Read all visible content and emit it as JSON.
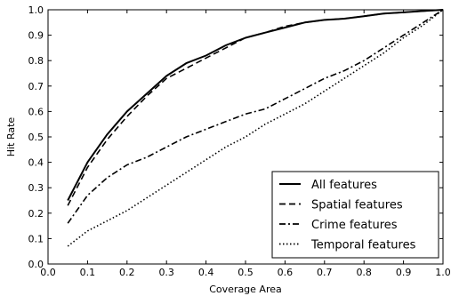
{
  "chart_data": {
    "type": "line",
    "xlabel": "Coverage Area",
    "ylabel": "Hit Rate",
    "xlim": [
      0.0,
      1.0
    ],
    "ylim": [
      0.0,
      1.0
    ],
    "xticks": [
      "0.0",
      "0.1",
      "0.2",
      "0.3",
      "0.4",
      "0.5",
      "0.6",
      "0.7",
      "0.8",
      "0.9",
      "1.0"
    ],
    "yticks": [
      "0.0",
      "0.1",
      "0.2",
      "0.3",
      "0.4",
      "0.5",
      "0.6",
      "0.7",
      "0.8",
      "0.9",
      "1.0"
    ],
    "grid": false,
    "legend_position": "bottom-right",
    "series": [
      {
        "name": "All features",
        "style": "solid",
        "color": "#000000",
        "x": [
          0.05,
          0.1,
          0.15,
          0.2,
          0.25,
          0.3,
          0.35,
          0.4,
          0.45,
          0.5,
          0.55,
          0.6,
          0.65,
          0.7,
          0.75,
          0.8,
          0.85,
          0.9,
          0.95,
          1.0
        ],
        "y": [
          0.25,
          0.4,
          0.51,
          0.6,
          0.67,
          0.74,
          0.79,
          0.82,
          0.86,
          0.89,
          0.91,
          0.93,
          0.95,
          0.96,
          0.965,
          0.975,
          0.985,
          0.99,
          0.995,
          1.0
        ]
      },
      {
        "name": "Spatial features",
        "style": "dashed",
        "color": "#000000",
        "x": [
          0.05,
          0.1,
          0.15,
          0.2,
          0.25,
          0.3,
          0.35,
          0.4,
          0.45,
          0.5,
          0.55,
          0.6,
          0.65,
          0.7,
          0.75,
          0.8,
          0.85,
          0.9,
          0.95,
          1.0
        ],
        "y": [
          0.23,
          0.38,
          0.49,
          0.58,
          0.66,
          0.73,
          0.77,
          0.81,
          0.85,
          0.89,
          0.91,
          0.935,
          0.95,
          0.96,
          0.965,
          0.975,
          0.985,
          0.99,
          0.995,
          1.0
        ]
      },
      {
        "name": "Crime features",
        "style": "dashdot",
        "color": "#000000",
        "x": [
          0.05,
          0.1,
          0.15,
          0.2,
          0.25,
          0.3,
          0.35,
          0.4,
          0.45,
          0.5,
          0.55,
          0.6,
          0.65,
          0.7,
          0.75,
          0.8,
          0.85,
          0.9,
          0.95,
          1.0
        ],
        "y": [
          0.16,
          0.27,
          0.34,
          0.39,
          0.42,
          0.46,
          0.5,
          0.53,
          0.56,
          0.59,
          0.61,
          0.65,
          0.69,
          0.73,
          0.76,
          0.8,
          0.85,
          0.9,
          0.95,
          1.0
        ]
      },
      {
        "name": "Temporal features",
        "style": "dotted",
        "color": "#000000",
        "x": [
          0.05,
          0.1,
          0.15,
          0.2,
          0.25,
          0.3,
          0.35,
          0.4,
          0.45,
          0.5,
          0.55,
          0.6,
          0.65,
          0.7,
          0.75,
          0.8,
          0.85,
          0.9,
          0.95,
          1.0
        ],
        "y": [
          0.07,
          0.13,
          0.17,
          0.21,
          0.26,
          0.31,
          0.36,
          0.41,
          0.46,
          0.5,
          0.55,
          0.59,
          0.63,
          0.68,
          0.73,
          0.78,
          0.83,
          0.89,
          0.94,
          1.0
        ]
      }
    ]
  }
}
